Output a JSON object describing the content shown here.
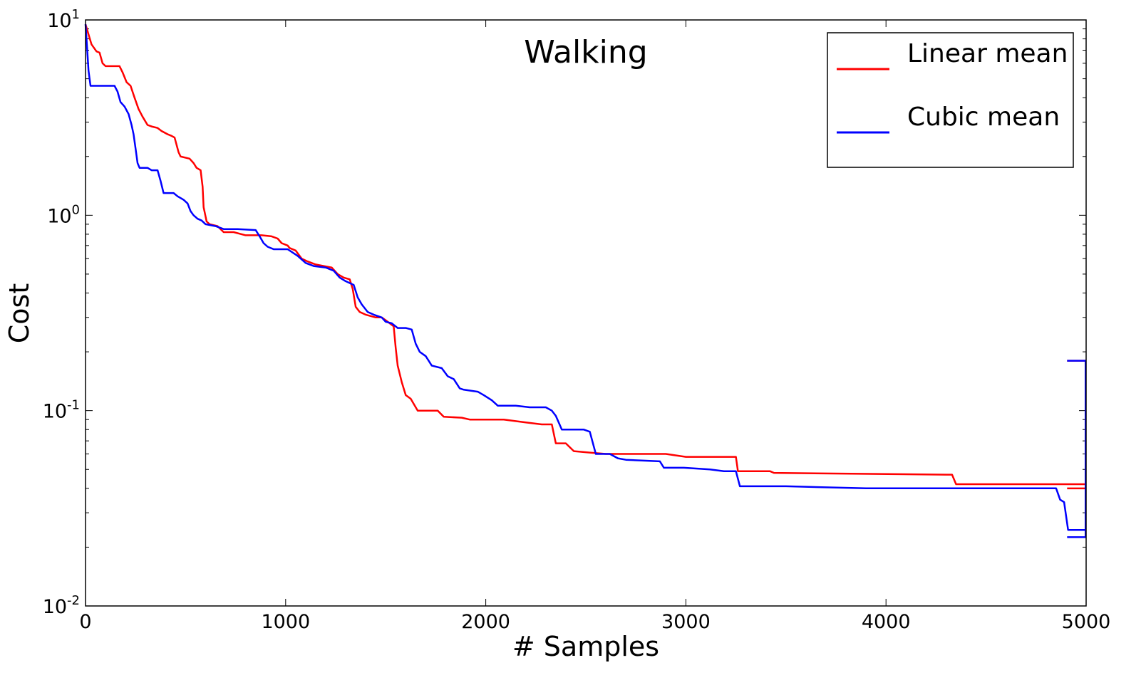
{
  "chart_data": {
    "type": "line",
    "title": "Walking",
    "xlabel": "# Samples",
    "ylabel": "Cost",
    "xlim": [
      0,
      5000
    ],
    "ylim": [
      0.01,
      10
    ],
    "yscale": "log",
    "grid": false,
    "legend_position": "top-right",
    "x_ticks": [
      0,
      1000,
      2000,
      3000,
      4000,
      5000
    ],
    "x_tick_labels": [
      "0",
      "1000",
      "2000",
      "3000",
      "4000",
      "5000"
    ],
    "y_ticks": [
      {
        "value": 0.01,
        "base": "10",
        "exp": "-2"
      },
      {
        "value": 0.1,
        "base": "10",
        "exp": "-1"
      },
      {
        "value": 1,
        "base": "10",
        "exp": "0"
      },
      {
        "value": 10,
        "base": "10",
        "exp": "1"
      }
    ],
    "series": [
      {
        "name": "Linear mean",
        "color": "#ff0000",
        "points": [
          [
            0,
            9.5
          ],
          [
            30,
            7.5
          ],
          [
            55,
            6.9
          ],
          [
            70,
            6.8
          ],
          [
            85,
            6.0
          ],
          [
            100,
            5.8
          ],
          [
            170,
            5.8
          ],
          [
            185,
            5.4
          ],
          [
            205,
            4.8
          ],
          [
            225,
            4.6
          ],
          [
            245,
            4.0
          ],
          [
            265,
            3.5
          ],
          [
            285,
            3.2
          ],
          [
            310,
            2.9
          ],
          [
            330,
            2.85
          ],
          [
            360,
            2.8
          ],
          [
            380,
            2.7
          ],
          [
            410,
            2.6
          ],
          [
            430,
            2.55
          ],
          [
            445,
            2.5
          ],
          [
            465,
            2.1
          ],
          [
            475,
            2.0
          ],
          [
            520,
            1.95
          ],
          [
            540,
            1.85
          ],
          [
            555,
            1.75
          ],
          [
            575,
            1.7
          ],
          [
            585,
            1.4
          ],
          [
            590,
            1.1
          ],
          [
            605,
            0.93
          ],
          [
            620,
            0.9
          ],
          [
            660,
            0.88
          ],
          [
            690,
            0.82
          ],
          [
            740,
            0.82
          ],
          [
            800,
            0.79
          ],
          [
            880,
            0.79
          ],
          [
            930,
            0.78
          ],
          [
            960,
            0.76
          ],
          [
            980,
            0.72
          ],
          [
            1010,
            0.7
          ],
          [
            1020,
            0.68
          ],
          [
            1050,
            0.66
          ],
          [
            1080,
            0.6
          ],
          [
            1110,
            0.58
          ],
          [
            1150,
            0.56
          ],
          [
            1190,
            0.55
          ],
          [
            1230,
            0.54
          ],
          [
            1260,
            0.5
          ],
          [
            1290,
            0.48
          ],
          [
            1320,
            0.47
          ],
          [
            1335,
            0.42
          ],
          [
            1350,
            0.34
          ],
          [
            1370,
            0.32
          ],
          [
            1400,
            0.31
          ],
          [
            1450,
            0.3
          ],
          [
            1480,
            0.3
          ],
          [
            1500,
            0.29
          ],
          [
            1540,
            0.27
          ],
          [
            1550,
            0.21
          ],
          [
            1560,
            0.17
          ],
          [
            1580,
            0.14
          ],
          [
            1600,
            0.12
          ],
          [
            1625,
            0.115
          ],
          [
            1660,
            0.1
          ],
          [
            1760,
            0.1
          ],
          [
            1790,
            0.093
          ],
          [
            1880,
            0.092
          ],
          [
            1920,
            0.09
          ],
          [
            2090,
            0.09
          ],
          [
            2200,
            0.087
          ],
          [
            2280,
            0.085
          ],
          [
            2330,
            0.085
          ],
          [
            2350,
            0.068
          ],
          [
            2400,
            0.068
          ],
          [
            2440,
            0.062
          ],
          [
            2520,
            0.061
          ],
          [
            2600,
            0.06
          ],
          [
            2900,
            0.06
          ],
          [
            3000,
            0.058
          ],
          [
            3140,
            0.058
          ],
          [
            3250,
            0.058
          ],
          [
            3260,
            0.049
          ],
          [
            3420,
            0.049
          ],
          [
            3440,
            0.048
          ],
          [
            4300,
            0.047
          ],
          [
            4330,
            0.047
          ],
          [
            4350,
            0.042
          ],
          [
            4600,
            0.042
          ],
          [
            5000,
            0.042
          ]
        ]
      },
      {
        "name": "Cubic mean",
        "color": "#0000ff",
        "points": [
          [
            0,
            9.5
          ],
          [
            5,
            8.0
          ],
          [
            15,
            5.5
          ],
          [
            25,
            4.6
          ],
          [
            145,
            4.6
          ],
          [
            160,
            4.3
          ],
          [
            175,
            3.8
          ],
          [
            195,
            3.6
          ],
          [
            215,
            3.3
          ],
          [
            230,
            2.9
          ],
          [
            240,
            2.6
          ],
          [
            250,
            2.2
          ],
          [
            260,
            1.85
          ],
          [
            270,
            1.75
          ],
          [
            310,
            1.75
          ],
          [
            330,
            1.7
          ],
          [
            360,
            1.7
          ],
          [
            375,
            1.5
          ],
          [
            390,
            1.3
          ],
          [
            440,
            1.3
          ],
          [
            460,
            1.25
          ],
          [
            490,
            1.2
          ],
          [
            510,
            1.15
          ],
          [
            525,
            1.05
          ],
          [
            540,
            1.0
          ],
          [
            560,
            0.96
          ],
          [
            580,
            0.94
          ],
          [
            600,
            0.9
          ],
          [
            650,
            0.88
          ],
          [
            690,
            0.85
          ],
          [
            760,
            0.85
          ],
          [
            850,
            0.84
          ],
          [
            870,
            0.78
          ],
          [
            890,
            0.72
          ],
          [
            910,
            0.69
          ],
          [
            940,
            0.67
          ],
          [
            1010,
            0.67
          ],
          [
            1060,
            0.62
          ],
          [
            1100,
            0.57
          ],
          [
            1140,
            0.55
          ],
          [
            1200,
            0.54
          ],
          [
            1240,
            0.52
          ],
          [
            1270,
            0.48
          ],
          [
            1300,
            0.46
          ],
          [
            1340,
            0.44
          ],
          [
            1360,
            0.38
          ],
          [
            1380,
            0.35
          ],
          [
            1410,
            0.32
          ],
          [
            1440,
            0.31
          ],
          [
            1480,
            0.3
          ],
          [
            1500,
            0.285
          ],
          [
            1530,
            0.28
          ],
          [
            1560,
            0.265
          ],
          [
            1600,
            0.265
          ],
          [
            1630,
            0.26
          ],
          [
            1650,
            0.22
          ],
          [
            1670,
            0.2
          ],
          [
            1700,
            0.19
          ],
          [
            1730,
            0.17
          ],
          [
            1780,
            0.165
          ],
          [
            1810,
            0.15
          ],
          [
            1840,
            0.145
          ],
          [
            1870,
            0.13
          ],
          [
            1890,
            0.128
          ],
          [
            1960,
            0.125
          ],
          [
            1990,
            0.12
          ],
          [
            2030,
            0.113
          ],
          [
            2060,
            0.106
          ],
          [
            2150,
            0.106
          ],
          [
            2220,
            0.104
          ],
          [
            2300,
            0.104
          ],
          [
            2330,
            0.1
          ],
          [
            2350,
            0.094
          ],
          [
            2380,
            0.08
          ],
          [
            2490,
            0.08
          ],
          [
            2520,
            0.078
          ],
          [
            2550,
            0.06
          ],
          [
            2620,
            0.06
          ],
          [
            2660,
            0.057
          ],
          [
            2700,
            0.056
          ],
          [
            2870,
            0.055
          ],
          [
            2890,
            0.051
          ],
          [
            2990,
            0.051
          ],
          [
            3120,
            0.05
          ],
          [
            3190,
            0.049
          ],
          [
            3250,
            0.049
          ],
          [
            3270,
            0.041
          ],
          [
            3500,
            0.041
          ],
          [
            3900,
            0.04
          ],
          [
            4850,
            0.04
          ],
          [
            4870,
            0.035
          ],
          [
            4890,
            0.034
          ],
          [
            4910,
            0.0245
          ],
          [
            4960,
            0.0245
          ],
          [
            5000,
            0.0245
          ]
        ]
      }
    ],
    "end_markers": [
      {
        "series": "Linear mean",
        "x_from": 4905,
        "x_to": 5000,
        "y": 0.04
      },
      {
        "series": "Linear mean",
        "x_from": 4905,
        "x_to": 5000,
        "y": 0.18
      },
      {
        "series": "Cubic mean",
        "x_from": 4905,
        "x_to": 5000,
        "y": 0.18
      },
      {
        "series": "Cubic mean",
        "x_from": 4905,
        "x_to": 5000,
        "y": 0.0225
      }
    ],
    "legend": [
      {
        "label": "Linear mean",
        "color": "#ff0000"
      },
      {
        "label": "Cubic mean",
        "color": "#0000ff"
      }
    ]
  }
}
